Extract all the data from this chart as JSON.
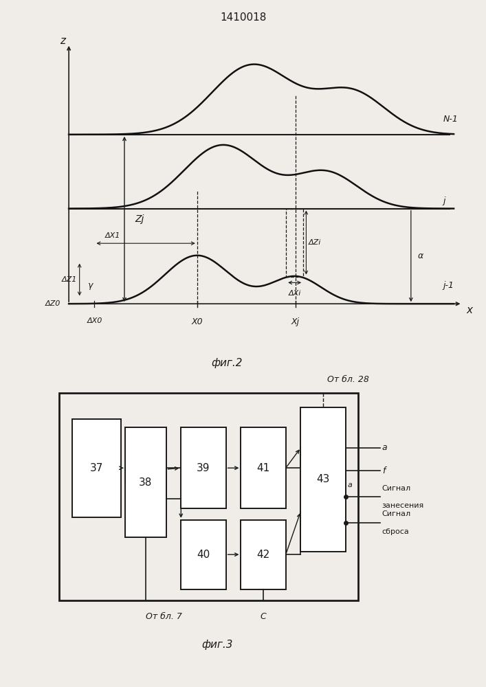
{
  "title": "1410018",
  "fig2_caption": "фиг.2",
  "fig3_caption": "фиг.3",
  "background_color": "#f0ede8",
  "line_color": "#1a1a1a",
  "curve_color": "#111111",
  "fig2": {
    "axis_x_label": "x",
    "axis_z_label": "z",
    "curve_N1_label": "N-1",
    "curve_j_label": "j",
    "curve_j1_label": "j-1",
    "Zj_label": "Zj",
    "DeltaZi_label": "ΔZi",
    "DeltaX1_label": "ΔX1",
    "DeltaZ1_label": "ΔZ1",
    "DeltaXi_label": "ΔXi",
    "DeltaZ0_label": "ΔZ0",
    "DeltaX0_label": "ΔX0",
    "X0_label": "X0",
    "Xj_label": "Xj",
    "gamma_label": "γ",
    "alpha_label": "α"
  },
  "fig3": {
    "Ot_bl28": "От бл. 28",
    "Ot_bl7": "От бл. 7",
    "a_out": "a",
    "f_out": "f",
    "signal_zanes_line1": "Сигнал",
    "signal_zanes_line2": "занесения",
    "a_label2": "a",
    "signal_sbros_line1": "Сигнал",
    "signal_sbros_line2": "сброса",
    "C_label": "C"
  }
}
